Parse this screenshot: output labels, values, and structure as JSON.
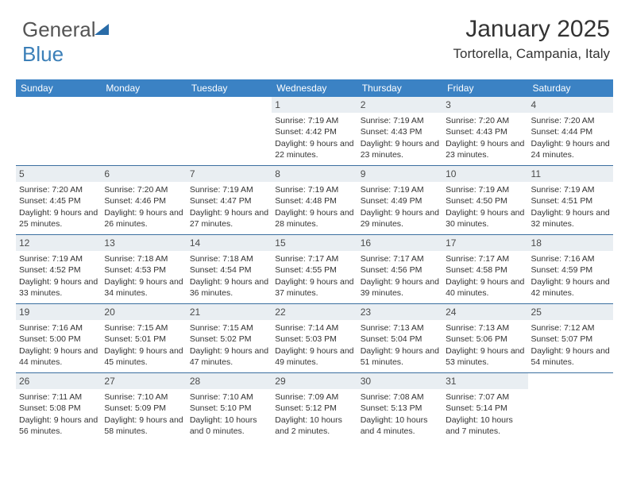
{
  "logo": {
    "part1": "General",
    "part2": "Blue"
  },
  "header": {
    "month_title": "January 2025",
    "location": "Tortorella, Campania, Italy"
  },
  "colors": {
    "header_bar": "#3b82c4",
    "week_divider": "#3b6fa0",
    "daynum_bg": "#e9eef2",
    "text": "#333333"
  },
  "day_names": [
    "Sunday",
    "Monday",
    "Tuesday",
    "Wednesday",
    "Thursday",
    "Friday",
    "Saturday"
  ],
  "weeks": [
    [
      {
        "empty": true
      },
      {
        "empty": true
      },
      {
        "empty": true
      },
      {
        "day": "1",
        "sunrise": "Sunrise: 7:19 AM",
        "sunset": "Sunset: 4:42 PM",
        "daylight": "Daylight: 9 hours and 22 minutes."
      },
      {
        "day": "2",
        "sunrise": "Sunrise: 7:19 AM",
        "sunset": "Sunset: 4:43 PM",
        "daylight": "Daylight: 9 hours and 23 minutes."
      },
      {
        "day": "3",
        "sunrise": "Sunrise: 7:20 AM",
        "sunset": "Sunset: 4:43 PM",
        "daylight": "Daylight: 9 hours and 23 minutes."
      },
      {
        "day": "4",
        "sunrise": "Sunrise: 7:20 AM",
        "sunset": "Sunset: 4:44 PM",
        "daylight": "Daylight: 9 hours and 24 minutes."
      }
    ],
    [
      {
        "day": "5",
        "sunrise": "Sunrise: 7:20 AM",
        "sunset": "Sunset: 4:45 PM",
        "daylight": "Daylight: 9 hours and 25 minutes."
      },
      {
        "day": "6",
        "sunrise": "Sunrise: 7:20 AM",
        "sunset": "Sunset: 4:46 PM",
        "daylight": "Daylight: 9 hours and 26 minutes."
      },
      {
        "day": "7",
        "sunrise": "Sunrise: 7:19 AM",
        "sunset": "Sunset: 4:47 PM",
        "daylight": "Daylight: 9 hours and 27 minutes."
      },
      {
        "day": "8",
        "sunrise": "Sunrise: 7:19 AM",
        "sunset": "Sunset: 4:48 PM",
        "daylight": "Daylight: 9 hours and 28 minutes."
      },
      {
        "day": "9",
        "sunrise": "Sunrise: 7:19 AM",
        "sunset": "Sunset: 4:49 PM",
        "daylight": "Daylight: 9 hours and 29 minutes."
      },
      {
        "day": "10",
        "sunrise": "Sunrise: 7:19 AM",
        "sunset": "Sunset: 4:50 PM",
        "daylight": "Daylight: 9 hours and 30 minutes."
      },
      {
        "day": "11",
        "sunrise": "Sunrise: 7:19 AM",
        "sunset": "Sunset: 4:51 PM",
        "daylight": "Daylight: 9 hours and 32 minutes."
      }
    ],
    [
      {
        "day": "12",
        "sunrise": "Sunrise: 7:19 AM",
        "sunset": "Sunset: 4:52 PM",
        "daylight": "Daylight: 9 hours and 33 minutes."
      },
      {
        "day": "13",
        "sunrise": "Sunrise: 7:18 AM",
        "sunset": "Sunset: 4:53 PM",
        "daylight": "Daylight: 9 hours and 34 minutes."
      },
      {
        "day": "14",
        "sunrise": "Sunrise: 7:18 AM",
        "sunset": "Sunset: 4:54 PM",
        "daylight": "Daylight: 9 hours and 36 minutes."
      },
      {
        "day": "15",
        "sunrise": "Sunrise: 7:17 AM",
        "sunset": "Sunset: 4:55 PM",
        "daylight": "Daylight: 9 hours and 37 minutes."
      },
      {
        "day": "16",
        "sunrise": "Sunrise: 7:17 AM",
        "sunset": "Sunset: 4:56 PM",
        "daylight": "Daylight: 9 hours and 39 minutes."
      },
      {
        "day": "17",
        "sunrise": "Sunrise: 7:17 AM",
        "sunset": "Sunset: 4:58 PM",
        "daylight": "Daylight: 9 hours and 40 minutes."
      },
      {
        "day": "18",
        "sunrise": "Sunrise: 7:16 AM",
        "sunset": "Sunset: 4:59 PM",
        "daylight": "Daylight: 9 hours and 42 minutes."
      }
    ],
    [
      {
        "day": "19",
        "sunrise": "Sunrise: 7:16 AM",
        "sunset": "Sunset: 5:00 PM",
        "daylight": "Daylight: 9 hours and 44 minutes."
      },
      {
        "day": "20",
        "sunrise": "Sunrise: 7:15 AM",
        "sunset": "Sunset: 5:01 PM",
        "daylight": "Daylight: 9 hours and 45 minutes."
      },
      {
        "day": "21",
        "sunrise": "Sunrise: 7:15 AM",
        "sunset": "Sunset: 5:02 PM",
        "daylight": "Daylight: 9 hours and 47 minutes."
      },
      {
        "day": "22",
        "sunrise": "Sunrise: 7:14 AM",
        "sunset": "Sunset: 5:03 PM",
        "daylight": "Daylight: 9 hours and 49 minutes."
      },
      {
        "day": "23",
        "sunrise": "Sunrise: 7:13 AM",
        "sunset": "Sunset: 5:04 PM",
        "daylight": "Daylight: 9 hours and 51 minutes."
      },
      {
        "day": "24",
        "sunrise": "Sunrise: 7:13 AM",
        "sunset": "Sunset: 5:06 PM",
        "daylight": "Daylight: 9 hours and 53 minutes."
      },
      {
        "day": "25",
        "sunrise": "Sunrise: 7:12 AM",
        "sunset": "Sunset: 5:07 PM",
        "daylight": "Daylight: 9 hours and 54 minutes."
      }
    ],
    [
      {
        "day": "26",
        "sunrise": "Sunrise: 7:11 AM",
        "sunset": "Sunset: 5:08 PM",
        "daylight": "Daylight: 9 hours and 56 minutes."
      },
      {
        "day": "27",
        "sunrise": "Sunrise: 7:10 AM",
        "sunset": "Sunset: 5:09 PM",
        "daylight": "Daylight: 9 hours and 58 minutes."
      },
      {
        "day": "28",
        "sunrise": "Sunrise: 7:10 AM",
        "sunset": "Sunset: 5:10 PM",
        "daylight": "Daylight: 10 hours and 0 minutes."
      },
      {
        "day": "29",
        "sunrise": "Sunrise: 7:09 AM",
        "sunset": "Sunset: 5:12 PM",
        "daylight": "Daylight: 10 hours and 2 minutes."
      },
      {
        "day": "30",
        "sunrise": "Sunrise: 7:08 AM",
        "sunset": "Sunset: 5:13 PM",
        "daylight": "Daylight: 10 hours and 4 minutes."
      },
      {
        "day": "31",
        "sunrise": "Sunrise: 7:07 AM",
        "sunset": "Sunset: 5:14 PM",
        "daylight": "Daylight: 10 hours and 7 minutes."
      },
      {
        "empty": true
      }
    ]
  ]
}
